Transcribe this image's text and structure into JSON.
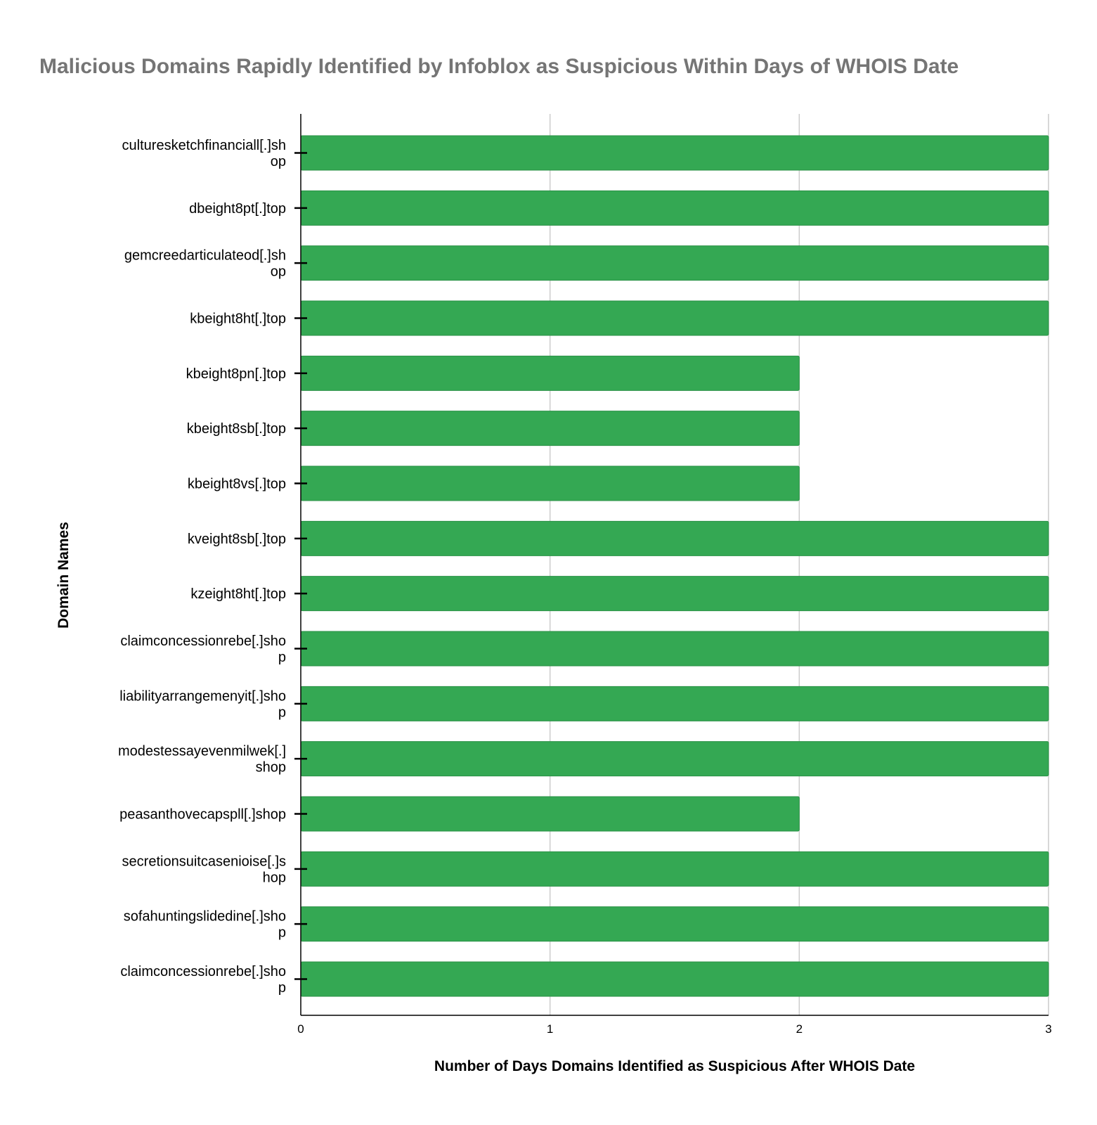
{
  "chart_data": {
    "type": "bar",
    "orientation": "horizontal",
    "title": "Malicious Domains Rapidly Identified by Infoblox as Suspicious Within Days of WHOIS Date",
    "xlabel": "Number of Days Domains Identified as Suspicious After WHOIS Date",
    "ylabel": "Domain Names",
    "xlim": [
      0,
      3
    ],
    "xticks": [
      "0",
      "1",
      "2",
      "3"
    ],
    "grid": true,
    "bar_color": "#34a853",
    "categories": [
      [
        "culturesketchfinanciall[.]sh",
        "op"
      ],
      [
        "dbeight8pt[.]top"
      ],
      [
        "gemcreedarticulateod[.]sh",
        "op"
      ],
      [
        "kbeight8ht[.]top"
      ],
      [
        "kbeight8pn[.]top"
      ],
      [
        "kbeight8sb[.]top"
      ],
      [
        "kbeight8vs[.]top"
      ],
      [
        "kveight8sb[.]top"
      ],
      [
        "kzeight8ht[.]top"
      ],
      [
        "claimconcessionrebe[.]sho",
        "p"
      ],
      [
        "liabilityarrangemenyit[.]sho",
        "p"
      ],
      [
        "modestessayevenmilwek[.]",
        "shop"
      ],
      [
        "peasanthovecapspll[.]shop"
      ],
      [
        "secretionsuitcasenioise[.]s",
        "hop"
      ],
      [
        "sofahuntingslidedine[.]sho",
        "p"
      ],
      [
        "claimconcessionrebe[.]sho",
        "p"
      ]
    ],
    "values": [
      3,
      3,
      3,
      3,
      2,
      2,
      2,
      3,
      3,
      3,
      3,
      3,
      2,
      3,
      3,
      3
    ]
  }
}
